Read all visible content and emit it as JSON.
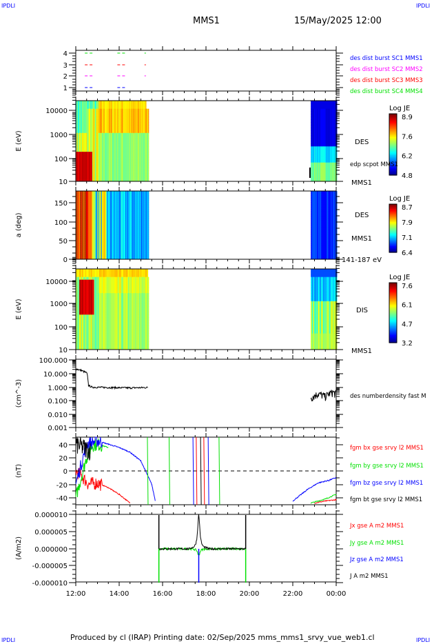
{
  "header": {
    "logo_left": "IPDLI",
    "logo_right": "IPDLI",
    "spacecraft": "MMS1",
    "datetime": "15/May/2025 12:00"
  },
  "footer": {
    "text": "Produced by cl (IRAP)   Printing date: 02/Sep/2025   mms_mms1_srvy_vue_web1.cl",
    "logo_left": "IPDLI",
    "logo_right": "IPDLI"
  },
  "colors": {
    "red": "#ff0000",
    "green": "#00e000",
    "blue": "#0000ff",
    "magenta": "#ff00ff",
    "black": "#000000"
  },
  "chart_data": [
    {
      "type": "scatter",
      "id": "burst",
      "yticks": [
        "1",
        "2",
        "3",
        "4"
      ],
      "legend": [
        {
          "label": "des dist burst SC1 MMS1",
          "color": "#0000ff"
        },
        {
          "label": "des dist burst SC2 MMS2",
          "color": "#ff00ff"
        },
        {
          "label": "des dist burst SC3 MMS3",
          "color": "#ff0000"
        },
        {
          "label": "des dist burst SC4 MMS4",
          "color": "#00e000"
        }
      ],
      "intervals": [
        [
          "12:25",
          "12:45"
        ],
        [
          "13:55",
          "14:15"
        ],
        [
          "15:10",
          "15:12"
        ]
      ]
    },
    {
      "type": "heatmap",
      "id": "des-energy",
      "ylabel": "E (eV)",
      "yscale": "log",
      "ylim": [
        10,
        30000
      ],
      "yticks": [
        "10",
        "100",
        "1000",
        "10000"
      ],
      "label": "DES",
      "sublabel": "edp scpot MMS1",
      "sc": "MMS1",
      "colorbar": {
        "title": "Log JE",
        "ticks": [
          "8.9",
          "7.6",
          "6.2",
          "4.8"
        ],
        "range": [
          4.8,
          8.9
        ]
      },
      "data_intervals": [
        [
          "12:00",
          "15:20"
        ],
        [
          "22:50",
          "00:00"
        ]
      ]
    },
    {
      "type": "heatmap",
      "id": "des-pitch",
      "ylabel": "a (deg)",
      "ylim": [
        0,
        180
      ],
      "yticks": [
        "0",
        "50",
        "100",
        "150"
      ],
      "label": "DES",
      "sc": "MMS1",
      "energy_range": "141-187 eV",
      "colorbar": {
        "title": "Log JE",
        "ticks": [
          "8.7",
          "7.9",
          "7.1",
          "6.4"
        ],
        "range": [
          6.4,
          8.7
        ]
      },
      "data_intervals": [
        [
          "12:00",
          "15:20"
        ],
        [
          "22:50",
          "00:00"
        ]
      ]
    },
    {
      "type": "heatmap",
      "id": "dis-energy",
      "ylabel": "E (eV)",
      "yscale": "log",
      "ylim": [
        10,
        30000
      ],
      "yticks": [
        "10",
        "100",
        "1000",
        "10000"
      ],
      "label": "DIS",
      "sc": "MMS1",
      "colorbar": {
        "title": "Log JE",
        "ticks": [
          "7.6",
          "6.1",
          "4.7",
          "3.2"
        ],
        "range": [
          3.2,
          7.6
        ]
      },
      "data_intervals": [
        [
          "12:00",
          "15:20"
        ],
        [
          "22:50",
          "00:00"
        ]
      ]
    },
    {
      "type": "line",
      "id": "density",
      "ylabel": "(cm^-3)",
      "yscale": "log",
      "ylim": [
        0.001,
        100
      ],
      "yticks": [
        "0.001",
        "0.010",
        "0.100",
        "1.000",
        "10.000",
        "100.000"
      ],
      "series": [
        {
          "name": "des numberdensity fast M",
          "color": "#000000",
          "x": [
            "12:00",
            "12:15",
            "12:30",
            "12:35",
            "12:45",
            "13:30",
            "14:30",
            "15:20",
            "22:50",
            "23:10",
            "23:30",
            "23:50",
            "00:00"
          ],
          "y": [
            20,
            15,
            10,
            1.2,
            0.9,
            0.85,
            0.8,
            0.85,
            0.15,
            0.3,
            0.2,
            0.4,
            0.3
          ]
        }
      ]
    },
    {
      "type": "line",
      "id": "bfield",
      "ylabel": "(nT)",
      "ylim": [
        -45,
        50
      ],
      "yticks": [
        "-40",
        "-20",
        "0",
        "20",
        "40"
      ],
      "series": [
        {
          "name": "fgm bx gse srvy l2 MMS1",
          "color": "#ff0000",
          "x": [
            "12:00",
            "12:20",
            "12:35",
            "13:00",
            "13:30",
            "14:00",
            "14:30",
            "23:00",
            "23:30",
            "00:00"
          ],
          "y": [
            0,
            -10,
            -20,
            -18,
            -25,
            -35,
            -48,
            -48,
            -45,
            -43
          ]
        },
        {
          "name": "fgm by gse srvy l2 MMS1",
          "color": "#00e000",
          "x": [
            "12:00",
            "12:30",
            "12:45",
            "13:00",
            "13:30",
            "22:50",
            "23:30",
            "00:00"
          ],
          "y": [
            -40,
            20,
            38,
            40,
            35,
            -48,
            -42,
            -35
          ]
        },
        {
          "name": "fgm bz gse srvy l2 MMS1",
          "color": "#0000ff",
          "x": [
            "12:00",
            "12:30",
            "13:00",
            "13:30",
            "14:00",
            "14:30",
            "15:00",
            "15:30",
            "15:40",
            "22:00",
            "22:40",
            "23:10",
            "23:40",
            "00:00"
          ],
          "y": [
            -20,
            40,
            45,
            40,
            35,
            28,
            15,
            -20,
            -45,
            -45,
            -28,
            -18,
            -14,
            -10
          ]
        },
        {
          "name": "fgm bt gse srvy l2 MMS1",
          "color": "#000000",
          "x": [
            "12:00",
            "12:20",
            "12:40"
          ],
          "y": [
            40,
            35,
            30
          ]
        }
      ]
    },
    {
      "type": "line",
      "id": "current",
      "ylabel": "(A/m2)",
      "ylim": [
        -1e-05,
        1e-05
      ],
      "yticks": [
        "-0.000010",
        "-0.000005",
        "0.000000",
        "0.000005",
        "0.000010"
      ],
      "series": [
        {
          "name": "Jx gse A m2 MMS1",
          "color": "#ff0000",
          "x": [
            "12:00",
            "17:40",
            "00:00"
          ],
          "y": [
            0,
            1e-06,
            0
          ]
        },
        {
          "name": "Jy gse A m2 MMS1",
          "color": "#00e000",
          "x": [
            "12:00",
            "15:50",
            "17:40",
            "19:50",
            "00:00"
          ],
          "y": [
            0,
            -1e-05,
            -2e-06,
            -1e-05,
            0
          ]
        },
        {
          "name": "Jz gse A m2 MMS1",
          "color": "#0000ff",
          "x": [
            "12:00",
            "17:40",
            "00:00"
          ],
          "y": [
            0,
            -1e-05,
            0
          ]
        },
        {
          "name": "J A m2 MMS1",
          "color": "#000000",
          "x": [
            "12:00",
            "15:50",
            "17:40",
            "19:50",
            "00:00"
          ],
          "y": [
            0,
            1e-05,
            1e-05,
            1e-05,
            0
          ]
        }
      ]
    }
  ],
  "xaxis": {
    "ticks": [
      "12:00",
      "14:00",
      "16:00",
      "18:00",
      "20:00",
      "22:00",
      "00:00"
    ]
  }
}
